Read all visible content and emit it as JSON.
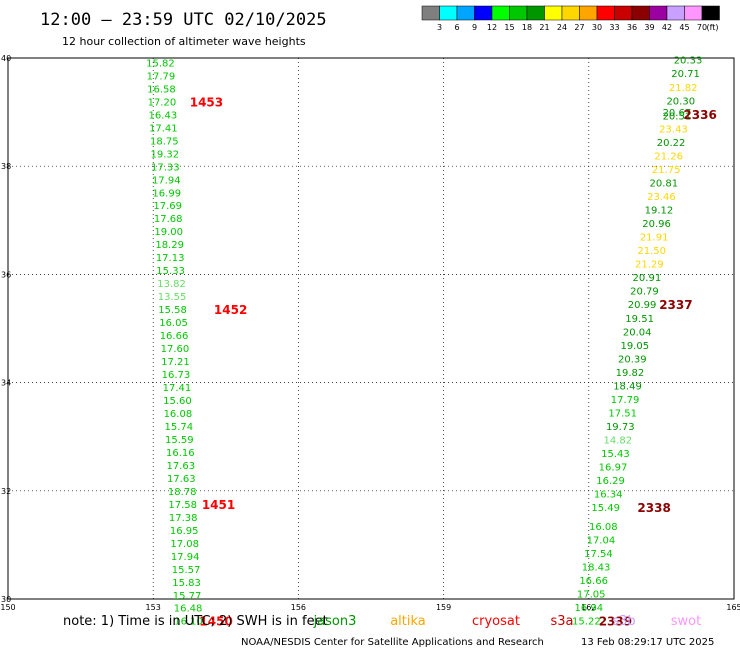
{
  "header": {
    "title": "12:00 – 23:59 UTC 02/10/2025",
    "subtitle": "12 hour collection of altimeter wave heights"
  },
  "legend": {
    "unit": "(ft)",
    "bins": [
      {
        "label": "3",
        "color": "#7f7f7f"
      },
      {
        "label": "6",
        "color": "#00ffff"
      },
      {
        "label": "9",
        "color": "#00a5ff"
      },
      {
        "label": "12",
        "color": "#0000ff"
      },
      {
        "label": "15",
        "color": "#00ff00"
      },
      {
        "label": "18",
        "color": "#00c800"
      },
      {
        "label": "21",
        "color": "#009600"
      },
      {
        "label": "24",
        "color": "#ffff00"
      },
      {
        "label": "27",
        "color": "#ffd700"
      },
      {
        "label": "30",
        "color": "#ffa500"
      },
      {
        "label": "33",
        "color": "#ff0000"
      },
      {
        "label": "36",
        "color": "#c80000"
      },
      {
        "label": "39",
        "color": "#8b0000"
      },
      {
        "label": "42",
        "color": "#9b00a0"
      },
      {
        "label": "45",
        "color": "#c8a0ff"
      },
      {
        "label": "70",
        "color": "#ff96ff"
      },
      {
        "label": "",
        "color": "#000000"
      }
    ]
  },
  "chart_data": {
    "type": "scatter",
    "xlim": [
      150,
      165
    ],
    "ylim": [
      30,
      40
    ],
    "x_ticks": [
      "150",
      "153",
      "156",
      "159",
      "162",
      "165"
    ],
    "y_ticks": [
      "30",
      "32",
      "34",
      "36",
      "38",
      "40"
    ],
    "grid": true,
    "points": [
      {
        "x": 153.15,
        "y": 39.9,
        "v": "15.82",
        "color": "#00c800"
      },
      {
        "x": 153.16,
        "y": 39.66,
        "v": "17.79",
        "color": "#00c800"
      },
      {
        "x": 153.17,
        "y": 39.42,
        "v": "16.58",
        "color": "#00c800"
      },
      {
        "x": 153.18,
        "y": 39.18,
        "v": "17.20",
        "color": "#00c800"
      },
      {
        "x": 153.2,
        "y": 38.94,
        "v": "16.43",
        "color": "#00c800"
      },
      {
        "x": 153.21,
        "y": 38.7,
        "v": "17.41",
        "color": "#00c800"
      },
      {
        "x": 153.23,
        "y": 38.46,
        "v": "18.75",
        "color": "#00c800"
      },
      {
        "x": 153.24,
        "y": 38.22,
        "v": "19.32",
        "color": "#00c800"
      },
      {
        "x": 153.25,
        "y": 37.98,
        "v": "17.33",
        "color": "#00c800"
      },
      {
        "x": 153.27,
        "y": 37.74,
        "v": "17.94",
        "color": "#00c800"
      },
      {
        "x": 153.28,
        "y": 37.5,
        "v": "16.99",
        "color": "#00c800"
      },
      {
        "x": 153.3,
        "y": 37.26,
        "v": "17.69",
        "color": "#00c800"
      },
      {
        "x": 153.31,
        "y": 37.02,
        "v": "17.68",
        "color": "#00c800"
      },
      {
        "x": 153.32,
        "y": 36.78,
        "v": "19.00",
        "color": "#00c800"
      },
      {
        "x": 153.34,
        "y": 36.54,
        "v": "18.29",
        "color": "#00c800"
      },
      {
        "x": 153.35,
        "y": 36.3,
        "v": "17.13",
        "color": "#00c800"
      },
      {
        "x": 153.36,
        "y": 36.06,
        "v": "15.33",
        "color": "#00c800"
      },
      {
        "x": 153.38,
        "y": 35.82,
        "v": "13.82",
        "color": "#66dd66"
      },
      {
        "x": 153.39,
        "y": 35.58,
        "v": "13.55",
        "color": "#66dd66"
      },
      {
        "x": 153.4,
        "y": 35.34,
        "v": "15.58",
        "color": "#00c800"
      },
      {
        "x": 153.42,
        "y": 35.1,
        "v": "16.05",
        "color": "#00c800"
      },
      {
        "x": 153.43,
        "y": 34.86,
        "v": "16.66",
        "color": "#00c800"
      },
      {
        "x": 153.45,
        "y": 34.62,
        "v": "17.60",
        "color": "#00c800"
      },
      {
        "x": 153.46,
        "y": 34.38,
        "v": "17.21",
        "color": "#00c800"
      },
      {
        "x": 153.47,
        "y": 34.14,
        "v": "16.73",
        "color": "#00c800"
      },
      {
        "x": 153.49,
        "y": 33.9,
        "v": "17.41",
        "color": "#00c800"
      },
      {
        "x": 153.5,
        "y": 33.66,
        "v": "15.60",
        "color": "#00c800"
      },
      {
        "x": 153.51,
        "y": 33.42,
        "v": "16.08",
        "color": "#00c800"
      },
      {
        "x": 153.53,
        "y": 33.18,
        "v": "15.74",
        "color": "#00c800"
      },
      {
        "x": 153.54,
        "y": 32.94,
        "v": "15.59",
        "color": "#00c800"
      },
      {
        "x": 153.56,
        "y": 32.7,
        "v": "16.16",
        "color": "#00c800"
      },
      {
        "x": 153.57,
        "y": 32.46,
        "v": "17.63",
        "color": "#00c800"
      },
      {
        "x": 153.58,
        "y": 32.22,
        "v": "17.63",
        "color": "#00c800"
      },
      {
        "x": 153.6,
        "y": 31.98,
        "v": "18.78",
        "color": "#00c800"
      },
      {
        "x": 153.61,
        "y": 31.74,
        "v": "17.58",
        "color": "#00c800"
      },
      {
        "x": 153.62,
        "y": 31.5,
        "v": "17.38",
        "color": "#00c800"
      },
      {
        "x": 153.64,
        "y": 31.26,
        "v": "16.95",
        "color": "#00c800"
      },
      {
        "x": 153.65,
        "y": 31.02,
        "v": "17.08",
        "color": "#00c800"
      },
      {
        "x": 153.66,
        "y": 30.78,
        "v": "17.94",
        "color": "#00c800"
      },
      {
        "x": 153.68,
        "y": 30.54,
        "v": "15.57",
        "color": "#00c800"
      },
      {
        "x": 153.69,
        "y": 30.3,
        "v": "15.83",
        "color": "#00c800"
      },
      {
        "x": 153.7,
        "y": 30.06,
        "v": "15.77",
        "color": "#00c800"
      },
      {
        "x": 153.72,
        "y": 29.82,
        "v": "16.48",
        "color": "#00c800"
      },
      {
        "x": 153.73,
        "y": 29.58,
        "v": "16.10",
        "color": "#00c800"
      },
      {
        "x": 164.05,
        "y": 39.95,
        "v": "20.33",
        "color": "#009600"
      },
      {
        "x": 164.0,
        "y": 39.7,
        "v": "20.71",
        "color": "#009600"
      },
      {
        "x": 163.95,
        "y": 39.45,
        "v": "21.82",
        "color": "#ffd700"
      },
      {
        "x": 163.9,
        "y": 39.2,
        "v": "20.30",
        "color": "#009600"
      },
      {
        "x": 163.82,
        "y": 38.98,
        "v": "20.67",
        "color": "#009600"
      },
      {
        "x": 163.82,
        "y": 38.92,
        "v": "20.51",
        "color": "#009600"
      },
      {
        "x": 163.75,
        "y": 38.68,
        "v": "23.43",
        "color": "#ffd700"
      },
      {
        "x": 163.7,
        "y": 38.43,
        "v": "20.22",
        "color": "#009600"
      },
      {
        "x": 163.65,
        "y": 38.18,
        "v": "21.26",
        "color": "#ffd700"
      },
      {
        "x": 163.6,
        "y": 37.93,
        "v": "21.75",
        "color": "#ffd700"
      },
      {
        "x": 163.55,
        "y": 37.68,
        "v": "20.81",
        "color": "#009600"
      },
      {
        "x": 163.5,
        "y": 37.43,
        "v": "23.46",
        "color": "#ffd700"
      },
      {
        "x": 163.45,
        "y": 37.18,
        "v": "19.12",
        "color": "#009600"
      },
      {
        "x": 163.4,
        "y": 36.93,
        "v": "20.96",
        "color": "#009600"
      },
      {
        "x": 163.35,
        "y": 36.68,
        "v": "21.91",
        "color": "#ffd700"
      },
      {
        "x": 163.3,
        "y": 36.43,
        "v": "21.50",
        "color": "#ffd700"
      },
      {
        "x": 163.25,
        "y": 36.18,
        "v": "21.29",
        "color": "#ffd700"
      },
      {
        "x": 163.2,
        "y": 35.93,
        "v": "20.91",
        "color": "#009600"
      },
      {
        "x": 163.15,
        "y": 35.68,
        "v": "20.79",
        "color": "#009600"
      },
      {
        "x": 163.1,
        "y": 35.43,
        "v": "20.99",
        "color": "#009600"
      },
      {
        "x": 163.05,
        "y": 35.18,
        "v": "19.51",
        "color": "#009600"
      },
      {
        "x": 163.0,
        "y": 34.93,
        "v": "20.04",
        "color": "#009600"
      },
      {
        "x": 162.95,
        "y": 34.68,
        "v": "19.05",
        "color": "#009600"
      },
      {
        "x": 162.9,
        "y": 34.43,
        "v": "20.39",
        "color": "#009600"
      },
      {
        "x": 162.85,
        "y": 34.18,
        "v": "19.82",
        "color": "#009600"
      },
      {
        "x": 162.8,
        "y": 33.93,
        "v": "18.49",
        "color": "#009600"
      },
      {
        "x": 162.75,
        "y": 33.68,
        "v": "17.79",
        "color": "#00c800"
      },
      {
        "x": 162.7,
        "y": 33.43,
        "v": "17.51",
        "color": "#00c800"
      },
      {
        "x": 162.65,
        "y": 33.18,
        "v": "19.73",
        "color": "#009600"
      },
      {
        "x": 162.6,
        "y": 32.93,
        "v": "14.82",
        "color": "#66dd66"
      },
      {
        "x": 162.55,
        "y": 32.68,
        "v": "15.43",
        "color": "#00c800"
      },
      {
        "x": 162.5,
        "y": 32.43,
        "v": "16.97",
        "color": "#00c800"
      },
      {
        "x": 162.45,
        "y": 32.18,
        "v": "16.29",
        "color": "#00c800"
      },
      {
        "x": 162.4,
        "y": 31.93,
        "v": "16.34",
        "color": "#00c800"
      },
      {
        "x": 162.35,
        "y": 31.68,
        "v": "15.49",
        "color": "#00c800"
      },
      {
        "x": 162.3,
        "y": 31.33,
        "v": "16.08",
        "color": "#00c800"
      },
      {
        "x": 162.25,
        "y": 31.08,
        "v": "17.04",
        "color": "#00c800"
      },
      {
        "x": 162.2,
        "y": 30.83,
        "v": "17.54",
        "color": "#00c800"
      },
      {
        "x": 162.15,
        "y": 30.58,
        "v": "18.43",
        "color": "#00c800"
      },
      {
        "x": 162.1,
        "y": 30.33,
        "v": "16.66",
        "color": "#00c800"
      },
      {
        "x": 162.05,
        "y": 30.08,
        "v": "17.05",
        "color": "#00c800"
      },
      {
        "x": 162.0,
        "y": 29.83,
        "v": "16.94",
        "color": "#00c800"
      },
      {
        "x": 161.95,
        "y": 29.58,
        "v": "15.22",
        "color": "#00c800"
      }
    ],
    "time_labels": [
      {
        "x": 154.1,
        "y": 39.18,
        "text": "1453",
        "color": "#ff0000"
      },
      {
        "x": 154.6,
        "y": 35.34,
        "text": "1452",
        "color": "#ff0000"
      },
      {
        "x": 154.35,
        "y": 31.74,
        "text": "1451",
        "color": "#ff0000"
      },
      {
        "x": 154.3,
        "y": 29.58,
        "text": "1450",
        "color": "#ff0000"
      },
      {
        "x": 164.3,
        "y": 38.95,
        "text": "2336",
        "color": "#8b0000"
      },
      {
        "x": 163.8,
        "y": 35.43,
        "text": "2337",
        "color": "#8b0000"
      },
      {
        "x": 163.35,
        "y": 31.68,
        "text": "2338",
        "color": "#8b0000"
      },
      {
        "x": 162.55,
        "y": 29.58,
        "text": "2339",
        "color": "#8b0000"
      }
    ]
  },
  "note": {
    "text": "note: 1) Time is in UTC; 2) SWH is in feet",
    "missions": [
      {
        "name": "jason3",
        "color": "#009600"
      },
      {
        "name": "altika",
        "color": "#ffa500"
      },
      {
        "name": "cryosat",
        "color": "#ff0000"
      },
      {
        "name": "s3a",
        "color": "#c80000"
      },
      {
        "name": "s3b",
        "color": "#c8a0ff"
      },
      {
        "name": "swot",
        "color": "#ff96ff"
      }
    ]
  },
  "footer": {
    "credit": "NOAA/NESDIS Center for Satellite Applications and Research",
    "timestamp": "13 Feb 08:29:17 UTC 2025"
  }
}
